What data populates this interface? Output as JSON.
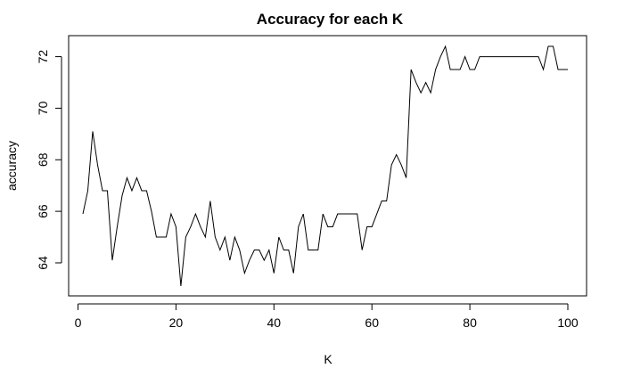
{
  "chart_data": {
    "type": "line",
    "title": "Accuracy for each K",
    "xlabel": "K",
    "ylabel": "accuracy",
    "xlim": [
      1,
      100
    ],
    "ylim": [
      63.1,
      72.4
    ],
    "xticks": [
      0,
      20,
      40,
      60,
      80,
      100
    ],
    "yticks": [
      64,
      66,
      68,
      70,
      72
    ],
    "grid": false,
    "legend": "none",
    "line_color": "#000000",
    "series": [
      {
        "x": [
          1,
          2,
          3,
          4,
          5,
          6,
          7,
          8,
          9,
          10,
          11,
          12,
          13,
          14,
          15,
          16,
          17,
          18,
          19,
          20,
          21,
          22,
          23,
          24,
          25,
          26,
          27,
          28,
          29,
          30,
          31,
          32,
          33,
          34,
          35,
          36,
          37,
          38,
          39,
          40,
          41,
          42,
          43,
          44,
          45,
          46,
          47,
          48,
          49,
          50,
          51,
          52,
          53,
          54,
          55,
          56,
          57,
          58,
          59,
          60,
          61,
          62,
          63,
          64,
          65,
          66,
          67,
          68,
          69,
          70,
          71,
          72,
          73,
          74,
          75,
          76,
          77,
          78,
          79,
          80,
          81,
          82,
          83,
          84,
          85,
          86,
          87,
          88,
          89,
          90,
          91,
          92,
          93,
          94,
          95,
          96,
          97,
          98,
          99,
          100
        ],
        "values": [
          65.9,
          66.8,
          69.1,
          67.8,
          66.8,
          66.8,
          64.1,
          65.4,
          66.6,
          67.3,
          66.8,
          67.3,
          66.8,
          66.8,
          66.0,
          65.0,
          65.0,
          65.0,
          65.9,
          65.4,
          63.1,
          65.0,
          65.4,
          65.9,
          65.4,
          65.0,
          66.4,
          65.0,
          64.5,
          65.0,
          64.1,
          65.0,
          64.5,
          63.6,
          64.1,
          64.5,
          64.5,
          64.1,
          64.5,
          63.6,
          65.0,
          64.5,
          64.5,
          63.6,
          65.4,
          65.9,
          64.5,
          64.5,
          64.5,
          65.9,
          65.4,
          65.4,
          65.9,
          65.9,
          65.9,
          65.9,
          65.9,
          64.5,
          65.4,
          65.4,
          65.9,
          66.4,
          66.4,
          67.8,
          68.2,
          67.8,
          67.3,
          71.5,
          71.0,
          70.6,
          71.0,
          70.6,
          71.5,
          72.0,
          72.4,
          71.5,
          71.5,
          71.5,
          72.0,
          71.5,
          71.5,
          72.0,
          72.0,
          72.0,
          72.0,
          72.0,
          72.0,
          72.0,
          72.0,
          72.0,
          72.0,
          72.0,
          72.0,
          72.0,
          71.5,
          72.4,
          72.4,
          71.5,
          71.5,
          71.5
        ]
      }
    ]
  }
}
